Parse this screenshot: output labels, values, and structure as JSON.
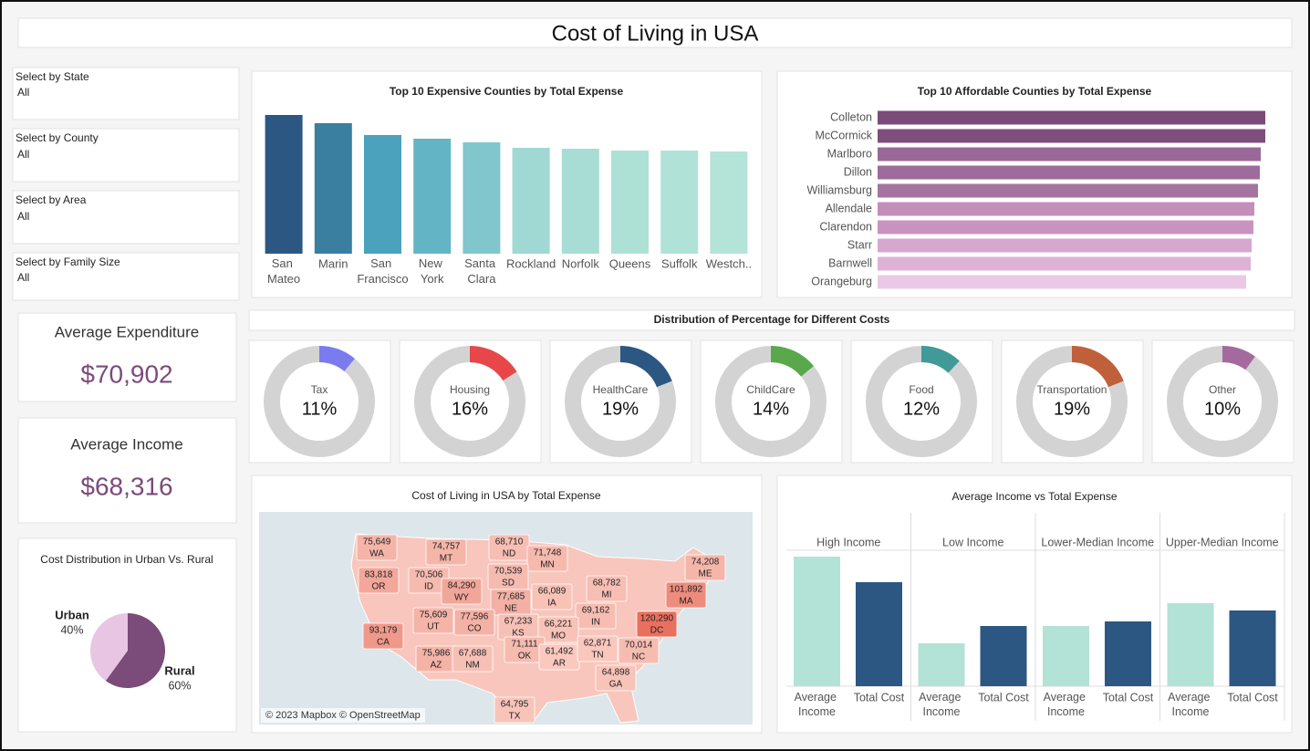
{
  "title": "Cost of Living in USA",
  "filters": [
    {
      "label": "Select by State",
      "value": "All"
    },
    {
      "label": "Select by County",
      "value": "All"
    },
    {
      "label": "Select by Area",
      "value": "All"
    },
    {
      "label": "Select by Family Size",
      "value": "All"
    }
  ],
  "kpis": [
    {
      "label": "Average Expenditure",
      "value": "$70,902"
    },
    {
      "label": "Average Income",
      "value": "$68,316"
    }
  ],
  "chart_data": [
    {
      "type": "bar",
      "title": "Top 10 Expensive Counties by Total Expense",
      "categories": [
        "San Mateo",
        "Marin",
        "San Francisco",
        "New York",
        "Santa Clara",
        "Rockland",
        "Norfolk",
        "Queens",
        "Suffolk",
        "Westch.."
      ],
      "values": [
        152000,
        143000,
        130000,
        126000,
        122000,
        116000,
        115000,
        113000,
        113000,
        112000
      ],
      "colors": [
        "#2c5783",
        "#3a7ea0",
        "#4aa2bd",
        "#63b5c6",
        "#80c6cc",
        "#a0d8d3",
        "#a7ddd4",
        "#aee1d6",
        "#b1e2d7",
        "#b4e3d8"
      ],
      "ylim": [
        0,
        160000
      ]
    },
    {
      "type": "hbar",
      "title": "Top 10 Affordable Counties by Total Expense",
      "categories": [
        "Colleton",
        "McCormick",
        "Marlboro",
        "Dillon",
        "Williamsburg",
        "Allendale",
        "Clarendon",
        "Starr",
        "Barnwell",
        "Orangeburg"
      ],
      "values": [
        42500,
        42500,
        42000,
        41900,
        41700,
        41300,
        41200,
        41000,
        40900,
        40400
      ],
      "colors": [
        "#7b4b7a",
        "#7e4e7d",
        "#9a6898",
        "#9e6c9c",
        "#a5739f",
        "#c48ebb",
        "#c993c0",
        "#d6a8cf",
        "#dcb3d6",
        "#ebc9e6"
      ],
      "xlim": [
        0,
        45000
      ]
    },
    {
      "type": "donut",
      "title": "Distribution of Percentage for Different Costs",
      "categories": [
        "Tax",
        "Housing",
        "HealthCare",
        "ChildCare",
        "Food",
        "Transportation",
        "Other"
      ],
      "values": [
        11,
        16,
        19,
        14,
        12,
        19,
        10
      ],
      "value_labels": [
        "11%",
        "16%",
        "19%",
        "14%",
        "12%",
        "19%",
        "10%"
      ],
      "colors": [
        "#7b7bf0",
        "#e8474a",
        "#2c5783",
        "#59a84b",
        "#3f9a98",
        "#c0603a",
        "#a46a9e"
      ]
    },
    {
      "type": "map",
      "title": "Cost of Living in USA by Total Expense",
      "states": [
        "WA",
        "MT",
        "ND",
        "MN",
        "OR",
        "ID",
        "SD",
        "WY",
        "MI",
        "IA",
        "NE",
        "UT",
        "CO",
        "KS",
        "IN",
        "MO",
        "DC",
        "MA",
        "ME",
        "CA",
        "AZ",
        "NM",
        "OK",
        "AR",
        "TN",
        "NC",
        "GA",
        "TX"
      ],
      "values": [
        75649,
        74757,
        68710,
        71748,
        83818,
        70506,
        70539,
        84290,
        68782,
        66089,
        77685,
        75609,
        77596,
        67233,
        69162,
        66221,
        120290,
        101892,
        74208,
        93179,
        75986,
        67688,
        71111,
        61492,
        62871,
        70014,
        64898,
        64795
      ],
      "value_labels": [
        "75,649",
        "74,757",
        "68,710",
        "71,748",
        "83,818",
        "70,506",
        "70,539",
        "84,290",
        "68,782",
        "66,089",
        "77,685",
        "75,609",
        "77,596",
        "67,233",
        "69,162",
        "66,221",
        "120,290",
        "101,892",
        "74,208",
        "93,179",
        "75,986",
        "67,688",
        "71,111",
        "61,492",
        "62,871",
        "70,014",
        "64,898",
        "64,795"
      ],
      "credit": "© 2023 Mapbox © OpenStreetMap"
    },
    {
      "type": "grouped_bar",
      "title": "Average Income vs Total Expense",
      "categories": [
        "High Income",
        "Low Income",
        "Lower-Median Income",
        "Upper-Median Income"
      ],
      "series": [
        {
          "name": "Average Income",
          "color": "#b3e2d6",
          "values": [
            142000,
            47000,
            66000,
            91000
          ]
        },
        {
          "name": "Total Cost",
          "color": "#2c5783",
          "values": [
            114000,
            66000,
            71000,
            83000
          ]
        }
      ],
      "ylim": [
        0,
        150000
      ]
    },
    {
      "type": "pie",
      "title": "Cost Distribution in Urban Vs. Rural",
      "categories": [
        "Urban",
        "Rural"
      ],
      "values": [
        40,
        60
      ],
      "value_labels": [
        "40%",
        "60%"
      ],
      "colors": [
        "#e8c5e3",
        "#7b4b7a"
      ]
    }
  ]
}
